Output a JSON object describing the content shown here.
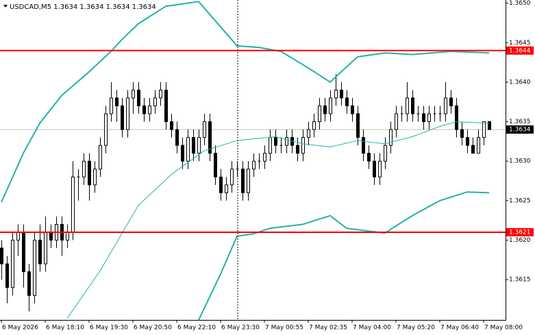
{
  "chart_data": {
    "type": "candlestick",
    "title": "USDCAD,M5  1.3634 1.3634 1.3634 1.3634",
    "xlim": [
      -0.25,
      92
    ],
    "ylim": [
      1.36099,
      1.36504
    ],
    "yticks": [
      1.3615,
      {
        "value": 1.362,
        "label": "1.3620"
      },
      1.3625,
      {
        "value": 1.363,
        "label": "1.3630"
      },
      1.3635,
      {
        "value": 1.364,
        "label": "1.3640"
      },
      1.3645,
      {
        "value": 1.365,
        "label": "1.3650"
      }
    ],
    "xticks": [
      {
        "value": 0,
        "label": "6 May 2026"
      },
      {
        "value": 8,
        "label": "6 May 18:10"
      },
      {
        "value": 16,
        "label": "6 May 19:30"
      },
      {
        "value": 24,
        "label": "6 May 20:50"
      },
      {
        "value": 32,
        "label": "6 May 22:10"
      },
      {
        "value": 40,
        "label": "6 May 23:30"
      },
      {
        "value": 48,
        "label": "7 May 00:55"
      },
      {
        "value": 56,
        "label": "7 May 02:35"
      },
      {
        "value": 64,
        "label": "7 May 04:00"
      },
      {
        "value": 72,
        "label": "7 May 05:20"
      },
      {
        "value": 80,
        "label": "7 May 06:40"
      },
      {
        "value": 88,
        "label": "7 May 08:00"
      }
    ],
    "candles": [
      [
        1.3619,
        1.362,
        1.3615,
        1.3617
      ],
      [
        1.3617,
        1.3618,
        1.3612,
        1.3614
      ],
      [
        1.3614,
        1.3621,
        1.3613,
        1.362
      ],
      [
        1.362,
        1.3622,
        1.3618,
        1.3621
      ],
      [
        1.3621,
        1.3622,
        1.3614,
        1.3616
      ],
      [
        1.3616,
        1.3617,
        1.3611,
        1.3613
      ],
      [
        1.3613,
        1.3621,
        1.3612,
        1.362
      ],
      [
        1.362,
        1.3622,
        1.3616,
        1.3617
      ],
      [
        1.3617,
        1.3623,
        1.3616,
        1.3621
      ],
      [
        1.3621,
        1.3622,
        1.3619,
        1.362
      ],
      [
        1.362,
        1.3623,
        1.3619,
        1.3622
      ],
      [
        1.3622,
        1.3623,
        1.3618,
        1.362
      ],
      [
        1.362,
        1.3622,
        1.3619,
        1.3621
      ],
      [
        1.3621,
        1.363,
        1.362,
        1.3628
      ],
      [
        1.3628,
        1.3629,
        1.3625,
        1.3628
      ],
      [
        1.3628,
        1.3631,
        1.3627,
        1.363
      ],
      [
        1.363,
        1.3631,
        1.3625,
        1.3627
      ],
      [
        1.3627,
        1.363,
        1.3626,
        1.3629
      ],
      [
        1.3629,
        1.3633,
        1.3628,
        1.3632
      ],
      [
        1.3632,
        1.3637,
        1.3631,
        1.3636
      ],
      [
        1.3636,
        1.364,
        1.3635,
        1.3638
      ],
      [
        1.3638,
        1.3639,
        1.3635,
        1.3637
      ],
      [
        1.3637,
        1.3638,
        1.3633,
        1.3634
      ],
      [
        1.3634,
        1.3639,
        1.3633,
        1.3638
      ],
      [
        1.3638,
        1.364,
        1.3636,
        1.3639
      ],
      [
        1.3639,
        1.364,
        1.3636,
        1.3637
      ],
      [
        1.3637,
        1.3638,
        1.3635,
        1.3636
      ],
      [
        1.3636,
        1.3638,
        1.3635,
        1.3637
      ],
      [
        1.3637,
        1.3639,
        1.3636,
        1.3638
      ],
      [
        1.3638,
        1.364,
        1.3637,
        1.3639
      ],
      [
        1.3639,
        1.364,
        1.3634,
        1.3635
      ],
      [
        1.3635,
        1.3636,
        1.3633,
        1.3634
      ],
      [
        1.3634,
        1.3635,
        1.3631,
        1.3632
      ],
      [
        1.3632,
        1.3633,
        1.3629,
        1.363
      ],
      [
        1.363,
        1.3634,
        1.3629,
        1.3633
      ],
      [
        1.3633,
        1.3634,
        1.363,
        1.3631
      ],
      [
        1.3631,
        1.3634,
        1.363,
        1.3633
      ],
      [
        1.3633,
        1.3636,
        1.3632,
        1.3635
      ],
      [
        1.3635,
        1.3636,
        1.363,
        1.3631
      ],
      [
        1.3631,
        1.3632,
        1.3627,
        1.3628
      ],
      [
        1.3628,
        1.3629,
        1.3625,
        1.3626
      ],
      [
        1.3626,
        1.3628,
        1.3625,
        1.3627
      ],
      [
        1.3627,
        1.363,
        1.3626,
        1.3629
      ],
      [
        1.3629,
        1.363,
        1.3628,
        1.3629
      ],
      [
        1.3629,
        1.363,
        1.3625,
        1.3626
      ],
      [
        1.3626,
        1.363,
        1.3625,
        1.3629
      ],
      [
        1.3629,
        1.3631,
        1.3628,
        1.363
      ],
      [
        1.363,
        1.3631,
        1.3629,
        1.363
      ],
      [
        1.363,
        1.3632,
        1.3629,
        1.3631
      ],
      [
        1.3631,
        1.3634,
        1.363,
        1.3633
      ],
      [
        1.3633,
        1.3634,
        1.3631,
        1.3632
      ],
      [
        1.3632,
        1.3633,
        1.3631,
        1.3632
      ],
      [
        1.3632,
        1.3634,
        1.3631,
        1.3633
      ],
      [
        1.3633,
        1.3634,
        1.3631,
        1.3632
      ],
      [
        1.3632,
        1.3633,
        1.363,
        1.3631
      ],
      [
        1.3631,
        1.3634,
        1.363,
        1.3633
      ],
      [
        1.3633,
        1.3635,
        1.3632,
        1.3634
      ],
      [
        1.3634,
        1.3636,
        1.3633,
        1.3635
      ],
      [
        1.3635,
        1.3638,
        1.3634,
        1.3637
      ],
      [
        1.3637,
        1.3638,
        1.3635,
        1.3636
      ],
      [
        1.3636,
        1.3639,
        1.3635,
        1.3638
      ],
      [
        1.3638,
        1.3641,
        1.3637,
        1.3639
      ],
      [
        1.3639,
        1.364,
        1.3637,
        1.3638
      ],
      [
        1.3638,
        1.3639,
        1.3636,
        1.3637
      ],
      [
        1.3637,
        1.3638,
        1.3635,
        1.3636
      ],
      [
        1.3636,
        1.3637,
        1.3632,
        1.3633
      ],
      [
        1.3633,
        1.3634,
        1.363,
        1.3631
      ],
      [
        1.3631,
        1.3632,
        1.3629,
        1.363
      ],
      [
        1.363,
        1.3631,
        1.3627,
        1.3628
      ],
      [
        1.3628,
        1.3631,
        1.3627,
        1.363
      ],
      [
        1.363,
        1.3633,
        1.3629,
        1.3632
      ],
      [
        1.3632,
        1.3635,
        1.3631,
        1.3634
      ],
      [
        1.3634,
        1.3637,
        1.3633,
        1.3636
      ],
      [
        1.3636,
        1.3637,
        1.3635,
        1.3636
      ],
      [
        1.3636,
        1.364,
        1.3635,
        1.3638
      ],
      [
        1.3638,
        1.3639,
        1.3635,
        1.3636
      ],
      [
        1.3636,
        1.3637,
        1.3635,
        1.3636
      ],
      [
        1.3636,
        1.3637,
        1.3634,
        1.3635
      ],
      [
        1.3635,
        1.3637,
        1.3634,
        1.3636
      ],
      [
        1.3636,
        1.3637,
        1.3635,
        1.3636
      ],
      [
        1.3636,
        1.3637,
        1.3635,
        1.3636
      ],
      [
        1.3636,
        1.364,
        1.3635,
        1.3638
      ],
      [
        1.3638,
        1.3639,
        1.3636,
        1.3637
      ],
      [
        1.3637,
        1.3638,
        1.3633,
        1.3634
      ],
      [
        1.3634,
        1.3635,
        1.3632,
        1.3633
      ],
      [
        1.3633,
        1.3634,
        1.3631,
        1.3632
      ],
      [
        1.3632,
        1.3633,
        1.3631,
        1.3631
      ],
      [
        1.3631,
        1.3634,
        1.3631,
        1.3633
      ],
      [
        1.3633,
        1.3635,
        1.3632,
        1.3635
      ],
      [
        1.3635,
        1.3635,
        1.3634,
        1.3634
      ]
    ],
    "series": [
      {
        "color": "#20b2aa",
        "width": 2,
        "x": [
          0,
          4,
          7,
          11,
          16,
          20,
          22,
          25,
          30,
          36,
          40,
          43,
          47,
          51,
          56,
          60,
          62,
          65,
          70,
          75,
          82,
          89
        ],
        "values": [
          1.36248,
          1.3631,
          1.36348,
          1.36383,
          1.36413,
          1.36439,
          1.36454,
          1.36474,
          1.36496,
          1.36502,
          1.3647,
          1.36446,
          1.36444,
          1.36439,
          1.36418,
          1.364,
          1.36413,
          1.36432,
          1.36437,
          1.36435,
          1.36439,
          1.36437
        ]
      },
      {
        "color": "#20b2aa",
        "width": 1,
        "x": [
          12,
          18,
          25,
          31,
          37,
          43,
          50,
          55,
          60,
          65,
          70,
          75,
          80,
          83,
          89
        ],
        "values": [
          1.36101,
          1.36161,
          1.36244,
          1.36283,
          1.36313,
          1.36326,
          1.36331,
          1.36322,
          1.36318,
          1.36326,
          1.36322,
          1.36331,
          1.36344,
          1.3635,
          1.36348
        ]
      },
      {
        "color": "#20b2aa",
        "width": 2,
        "x": [
          36,
          40,
          43,
          46,
          49,
          55,
          60,
          63,
          70,
          72,
          75,
          80,
          85,
          89
        ],
        "values": [
          1.36099,
          1.36157,
          1.36205,
          1.36208,
          1.36215,
          1.3622,
          1.36231,
          1.36215,
          1.36209,
          1.36218,
          1.36231,
          1.3625,
          1.36261,
          1.3626
        ]
      }
    ],
    "levels": [
      {
        "value": 1.3644,
        "color": "#ff0000"
      },
      {
        "value": 1.3621,
        "color": "#ff0000"
      }
    ],
    "bid": 1.3634
  }
}
